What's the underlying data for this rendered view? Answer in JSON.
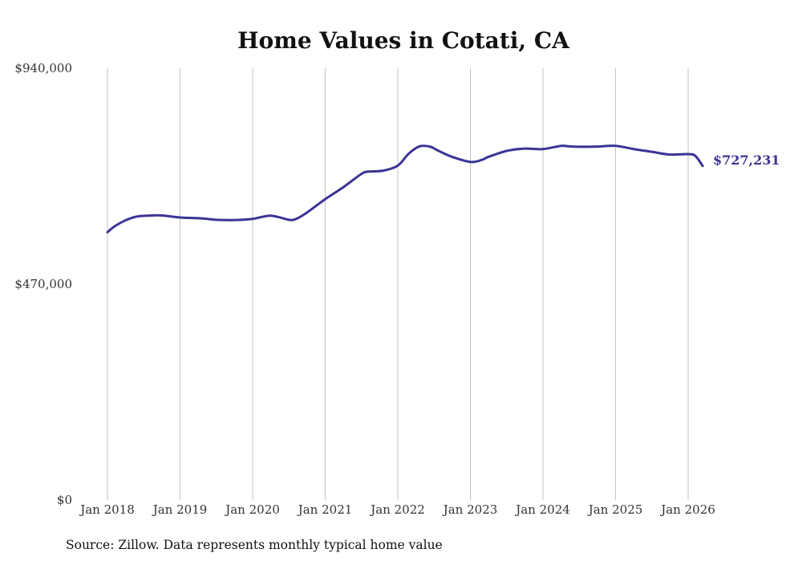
{
  "chart_data": {
    "type": "line",
    "title": "Home Values in Cotati, CA",
    "source": "Source: Zillow. Data represents monthly typical home value",
    "xlabel": "",
    "ylabel": "",
    "ylim": [
      0,
      940000
    ],
    "y_ticks": [
      0,
      470000,
      940000
    ],
    "y_tick_labels": [
      "$0",
      "$470,000",
      "$940,000"
    ],
    "x_ticks": [
      2018,
      2019,
      2020,
      2021,
      2022,
      2023,
      2024,
      2025,
      2026
    ],
    "x_tick_labels": [
      "Jan 2018",
      "Jan 2019",
      "Jan 2020",
      "Jan 2021",
      "Jan 2022",
      "Jan 2023",
      "Jan 2024",
      "Jan 2025",
      "Jan 2026"
    ],
    "xlim": [
      2018,
      2026.2
    ],
    "grid": "vertical",
    "line_color": "#3b3495",
    "end_label": "$727,231",
    "series": [
      {
        "name": "Typical home value",
        "x": [
          2018.0,
          2018.1,
          2018.25,
          2018.4,
          2018.55,
          2018.75,
          2019.0,
          2019.3,
          2019.5,
          2019.75,
          2020.0,
          2020.25,
          2020.5,
          2020.6,
          2020.75,
          2021.0,
          2021.25,
          2021.5,
          2021.6,
          2021.8,
          2022.0,
          2022.15,
          2022.3,
          2022.45,
          2022.55,
          2022.75,
          2023.0,
          2023.15,
          2023.25,
          2023.5,
          2023.75,
          2024.0,
          2024.25,
          2024.35,
          2024.5,
          2024.75,
          2025.0,
          2025.25,
          2025.5,
          2025.75,
          2026.0,
          2026.1,
          2026.2
        ],
        "values": [
          583000,
          596000,
          609000,
          617000,
          619000,
          619500,
          615000,
          613000,
          610000,
          609500,
          612000,
          619000,
          610000,
          612000,
          626000,
          655000,
          681000,
          710000,
          715000,
          717000,
          728000,
          754000,
          770000,
          769000,
          761000,
          747000,
          736000,
          740000,
          747000,
          760000,
          765000,
          764000,
          771000,
          770000,
          769000,
          769500,
          771000,
          764000,
          758000,
          752000,
          753000,
          749000,
          727231
        ]
      }
    ]
  }
}
